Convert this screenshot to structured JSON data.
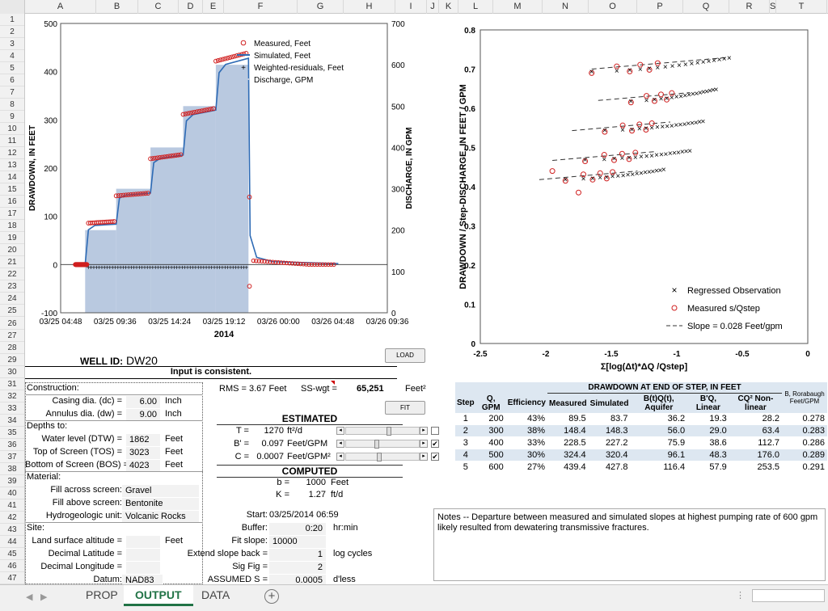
{
  "columns": [
    "A",
    "B",
    "C",
    "D",
    "E",
    "F",
    "G",
    "H",
    "I",
    "J",
    "K",
    "L",
    "M",
    "N",
    "O",
    "P",
    "Q",
    "R",
    "S",
    "T"
  ],
  "rows": [
    "1",
    "2",
    "3",
    "4",
    "5",
    "6",
    "7",
    "8",
    "9",
    "10",
    "11",
    "12",
    "13",
    "14",
    "15",
    "16",
    "17",
    "18",
    "19",
    "20",
    "21",
    "22",
    "23",
    "24",
    "25",
    "26",
    "27",
    "28",
    "29",
    "30",
    "31",
    "32",
    "33",
    "34",
    "35",
    "36",
    "37",
    "38",
    "39",
    "40",
    "41",
    "42",
    "43",
    "44",
    "45",
    "46",
    "47"
  ],
  "chart_data": [
    {
      "type": "line",
      "xlabel": "2014",
      "ylabel": "DRAWDOWN, IN FEET",
      "y2label": "DISCHARGE, IN GPM",
      "xticks": [
        "03/25 04:48",
        "03/25 09:36",
        "03/25 14:24",
        "03/25 19:12",
        "03/26 00:00",
        "03/26 04:48",
        "03/26 09:36"
      ],
      "ylim": [
        -100,
        500
      ],
      "yticks": [
        "-100",
        "0",
        "100",
        "200",
        "300",
        "400",
        "500"
      ],
      "y2lim": [
        0,
        700
      ],
      "y2ticks": [
        "0",
        "100",
        "200",
        "300",
        "400",
        "500",
        "600",
        "700"
      ],
      "legend": [
        "Measured, Feet",
        "Simulated, Feet",
        "Weighted-residuals, Feet",
        "Discharge, GPM"
      ],
      "discharge_steps": [
        {
          "x0": 0.075,
          "x1": 0.17,
          "q": 200
        },
        {
          "x0": 0.17,
          "x1": 0.275,
          "q": 300
        },
        {
          "x0": 0.275,
          "x1": 0.375,
          "q": 400
        },
        {
          "x0": 0.375,
          "x1": 0.475,
          "q": 500
        },
        {
          "x0": 0.475,
          "x1": 0.575,
          "q": 600
        }
      ],
      "step_drawdown": [
        89.5,
        148.4,
        228.5,
        324.4,
        439.4
      ],
      "simulated_drawdown": [
        83.7,
        148.3,
        227.2,
        320.4,
        427.8
      ]
    },
    {
      "type": "scatter",
      "xlabel": "Σ[log(Δt)*ΔQ /Qstep]",
      "ylabel": "DRAWDOWN / Step-DISCHARGE, IN FEET / GPM",
      "xlim": [
        -2.5,
        0
      ],
      "xticks": [
        "-2.5",
        "-2",
        "-1.5",
        "-1",
        "-0.5",
        "0"
      ],
      "ylim": [
        0,
        0.8
      ],
      "yticks": [
        "0",
        "0.1",
        "0.2",
        "0.3",
        "0.4",
        "0.5",
        "0.6",
        "0.7",
        "0.8"
      ],
      "legend": [
        "Regressed Observation",
        "Measured s/Qstep",
        "Slope = 0.028 Feet/gpm"
      ],
      "steps": [
        {
          "x0": -1.85,
          "x1": -1.1,
          "y0": 0.42,
          "y1": 0.445
        },
        {
          "x0": -1.7,
          "x1": -0.9,
          "y0": 0.47,
          "y1": 0.493
        },
        {
          "x0": -1.55,
          "x1": -0.8,
          "y0": 0.545,
          "y1": 0.568
        },
        {
          "x0": -1.35,
          "x1": -0.7,
          "y0": 0.62,
          "y1": 0.65
        },
        {
          "x0": -1.65,
          "x1": -0.6,
          "y0": 0.695,
          "y1": 0.73
        }
      ],
      "slope_lines": [
        {
          "x0": -2.05,
          "x1": -1.3,
          "y0": 0.418,
          "y1": 0.44
        },
        {
          "x0": -1.95,
          "x1": -1.15,
          "y0": 0.467,
          "y1": 0.49
        },
        {
          "x0": -1.8,
          "x1": -1.05,
          "y0": 0.543,
          "y1": 0.565
        },
        {
          "x0": -1.6,
          "x1": -0.9,
          "y0": 0.62,
          "y1": 0.64
        },
        {
          "x0": -1.65,
          "x1": -0.6,
          "y0": 0.7,
          "y1": 0.73
        }
      ]
    }
  ],
  "well": {
    "label": "WELL ID:",
    "id": "DW20"
  },
  "load_button": "LOAD",
  "fit_button": "FIT",
  "status": "Input is consistent.",
  "construction": {
    "header": "Construction:",
    "casing_label": "Casing dia. (dc) =",
    "casing": "6.00",
    "casing_unit": "Inch",
    "annulus_label": "Annulus dia. (dw) =",
    "annulus": "9.00",
    "annulus_unit": "Inch",
    "depths_label": "Depths to:",
    "dtw_label": "Water level (DTW) =",
    "dtw": "1862",
    "dtw_unit": "Feet",
    "tos_label": "Top of Screen (TOS) =",
    "tos": "3023",
    "tos_unit": "Feet",
    "bos_label": "Bottom of Screen (BOS) =",
    "bos": "4023",
    "bos_unit": "Feet",
    "material_label": "Material:",
    "fill_across_label": "Fill across  screen:",
    "fill_across": "Gravel",
    "fill_above_label": "Fill above screen:",
    "fill_above": "Bentonite",
    "hydro_label": "Hydrogeologic unit:",
    "hydro": "Volcanic Rocks",
    "site_label": "Site:",
    "alt_label": "Land surface altitude =",
    "alt_unit": "Feet",
    "lat_label": "Decimal Latitude =",
    "lon_label": "Decimal Longitude =",
    "datum_label": "Datum:",
    "datum": "NAD83"
  },
  "fit": {
    "rms": "RMS = 3.67 Feet",
    "sswgt_label": "SS-wgt =",
    "sswgt": "65,251",
    "sswgt_unit": "Feet²",
    "estimated": "ESTIMATED",
    "t_label": "T =",
    "t": "1270",
    "t_unit": "ft²/d",
    "b1_label": "B' =",
    "b1": "0.097",
    "b1_unit": "Feet/GPM",
    "c_label": "C =",
    "c": "0.0007",
    "c_unit": "Feet/GPM²",
    "computed": "COMPUTED",
    "b_label": "b =",
    "b": "1000",
    "b_unit": "Feet",
    "k_label": "K =",
    "k": "1.27",
    "k_unit": "ft/d",
    "start_label": "Start:",
    "start": "03/25/2014 06:59",
    "buffer_label": "Buffer:",
    "buffer": "0:20",
    "buffer_unit": "hr:min",
    "fitslope_label": "Fit slope:",
    "fitslope": "10000",
    "extend_label": "Extend slope back =",
    "extend": "1",
    "extend_unit": "log cycles",
    "sigfig_label": "Sig Fig =",
    "sigfig": "2",
    "assumed_label": "ASSUMED S =",
    "assumed": "0.0005",
    "assumed_unit": "d'less"
  },
  "results": {
    "title": "DRAWDOWN AT END OF STEP,  IN FEET",
    "headers": [
      "Step",
      "Q, GPM",
      "Efficiency",
      "Measured",
      "Simulated",
      "B(t)Q(t), Aquifer",
      "B'Q, Linear",
      "CQ² Non-linear",
      "B, Rorabaugh Feet/GPM"
    ],
    "rows": [
      [
        "1",
        "200",
        "43%",
        "89.5",
        "83.7",
        "36.2",
        "19.3",
        "28.2",
        "0.278"
      ],
      [
        "2",
        "300",
        "38%",
        "148.4",
        "148.3",
        "56.0",
        "29.0",
        "63.4",
        "0.283"
      ],
      [
        "3",
        "400",
        "33%",
        "228.5",
        "227.2",
        "75.9",
        "38.6",
        "112.7",
        "0.286"
      ],
      [
        "4",
        "500",
        "30%",
        "324.4",
        "320.4",
        "96.1",
        "48.3",
        "176.0",
        "0.289"
      ],
      [
        "5",
        "600",
        "27%",
        "439.4",
        "427.8",
        "116.4",
        "57.9",
        "253.5",
        "0.291"
      ]
    ]
  },
  "notes": "Notes -- Departure between measured and simulated slopes at highest pumping rate of 600 gpm likely resulted from dewatering transmissive fractures.",
  "tabs": [
    "PROP",
    "OUTPUT",
    "DATA"
  ],
  "colors": {
    "excel_green": "#217346",
    "discharge_fill": "#b9c9e0",
    "simulated": "#2e6bb5",
    "measured": "#d02020"
  }
}
